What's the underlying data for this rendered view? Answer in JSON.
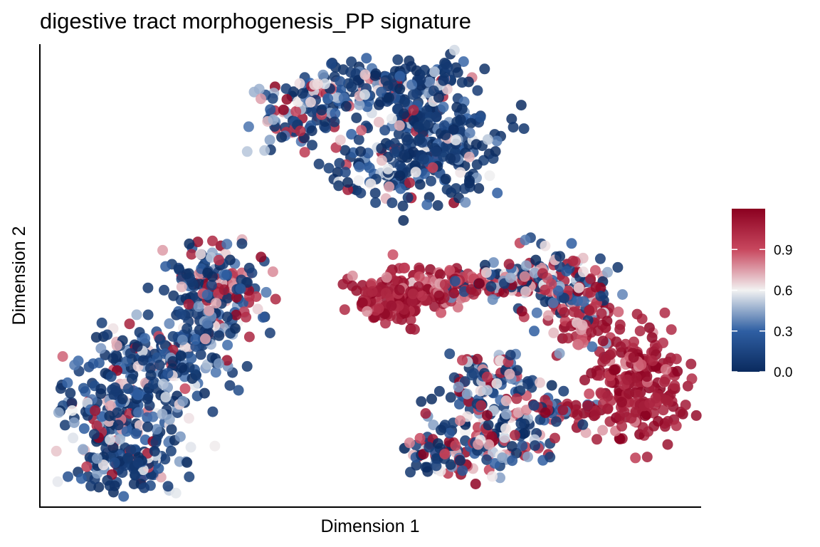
{
  "chart_data": {
    "type": "scatter",
    "title": "digestive tract morphogenesis_PP signature",
    "xlabel": "Dimension 1",
    "ylabel": "Dimension 2",
    "x_ticks_shown": false,
    "y_ticks_shown": false,
    "grid": false,
    "color_scale": {
      "type": "continuous",
      "low_color": "#0a2a5e",
      "mid_color": "#f2f2f2",
      "high_color": "#8b0020",
      "ticks": [
        "0.0",
        "0.3",
        "0.6",
        "0.9"
      ],
      "tick_values": [
        0.0,
        0.3,
        0.6,
        0.9
      ],
      "range": [
        0.0,
        1.2
      ],
      "legend_placement": "right"
    },
    "clusters": [
      {
        "cells": "upper-center",
        "predominant_signature": "low (0.0–0.3)",
        "x_range": [
          -1.4,
          1.6
        ],
        "y_range": [
          1.6,
          4.2
        ]
      },
      {
        "cells": "lower-left",
        "predominant_signature": "low–mid (0.0–0.6)",
        "x_range": [
          -5.1,
          -2.0
        ],
        "y_range": [
          -3.9,
          0.0
        ]
      },
      {
        "cells": "middle-right band",
        "predominant_signature": "high (0.8–1.2)",
        "x_range": [
          0.3,
          5.2
        ],
        "y_range": [
          -2.4,
          0.9
        ]
      },
      {
        "cells": "lower-right",
        "predominant_signature": "mixed (0.0–1.0)",
        "x_range": [
          1.1,
          3.4
        ],
        "y_range": [
          -3.9,
          -1.5
        ]
      }
    ]
  }
}
